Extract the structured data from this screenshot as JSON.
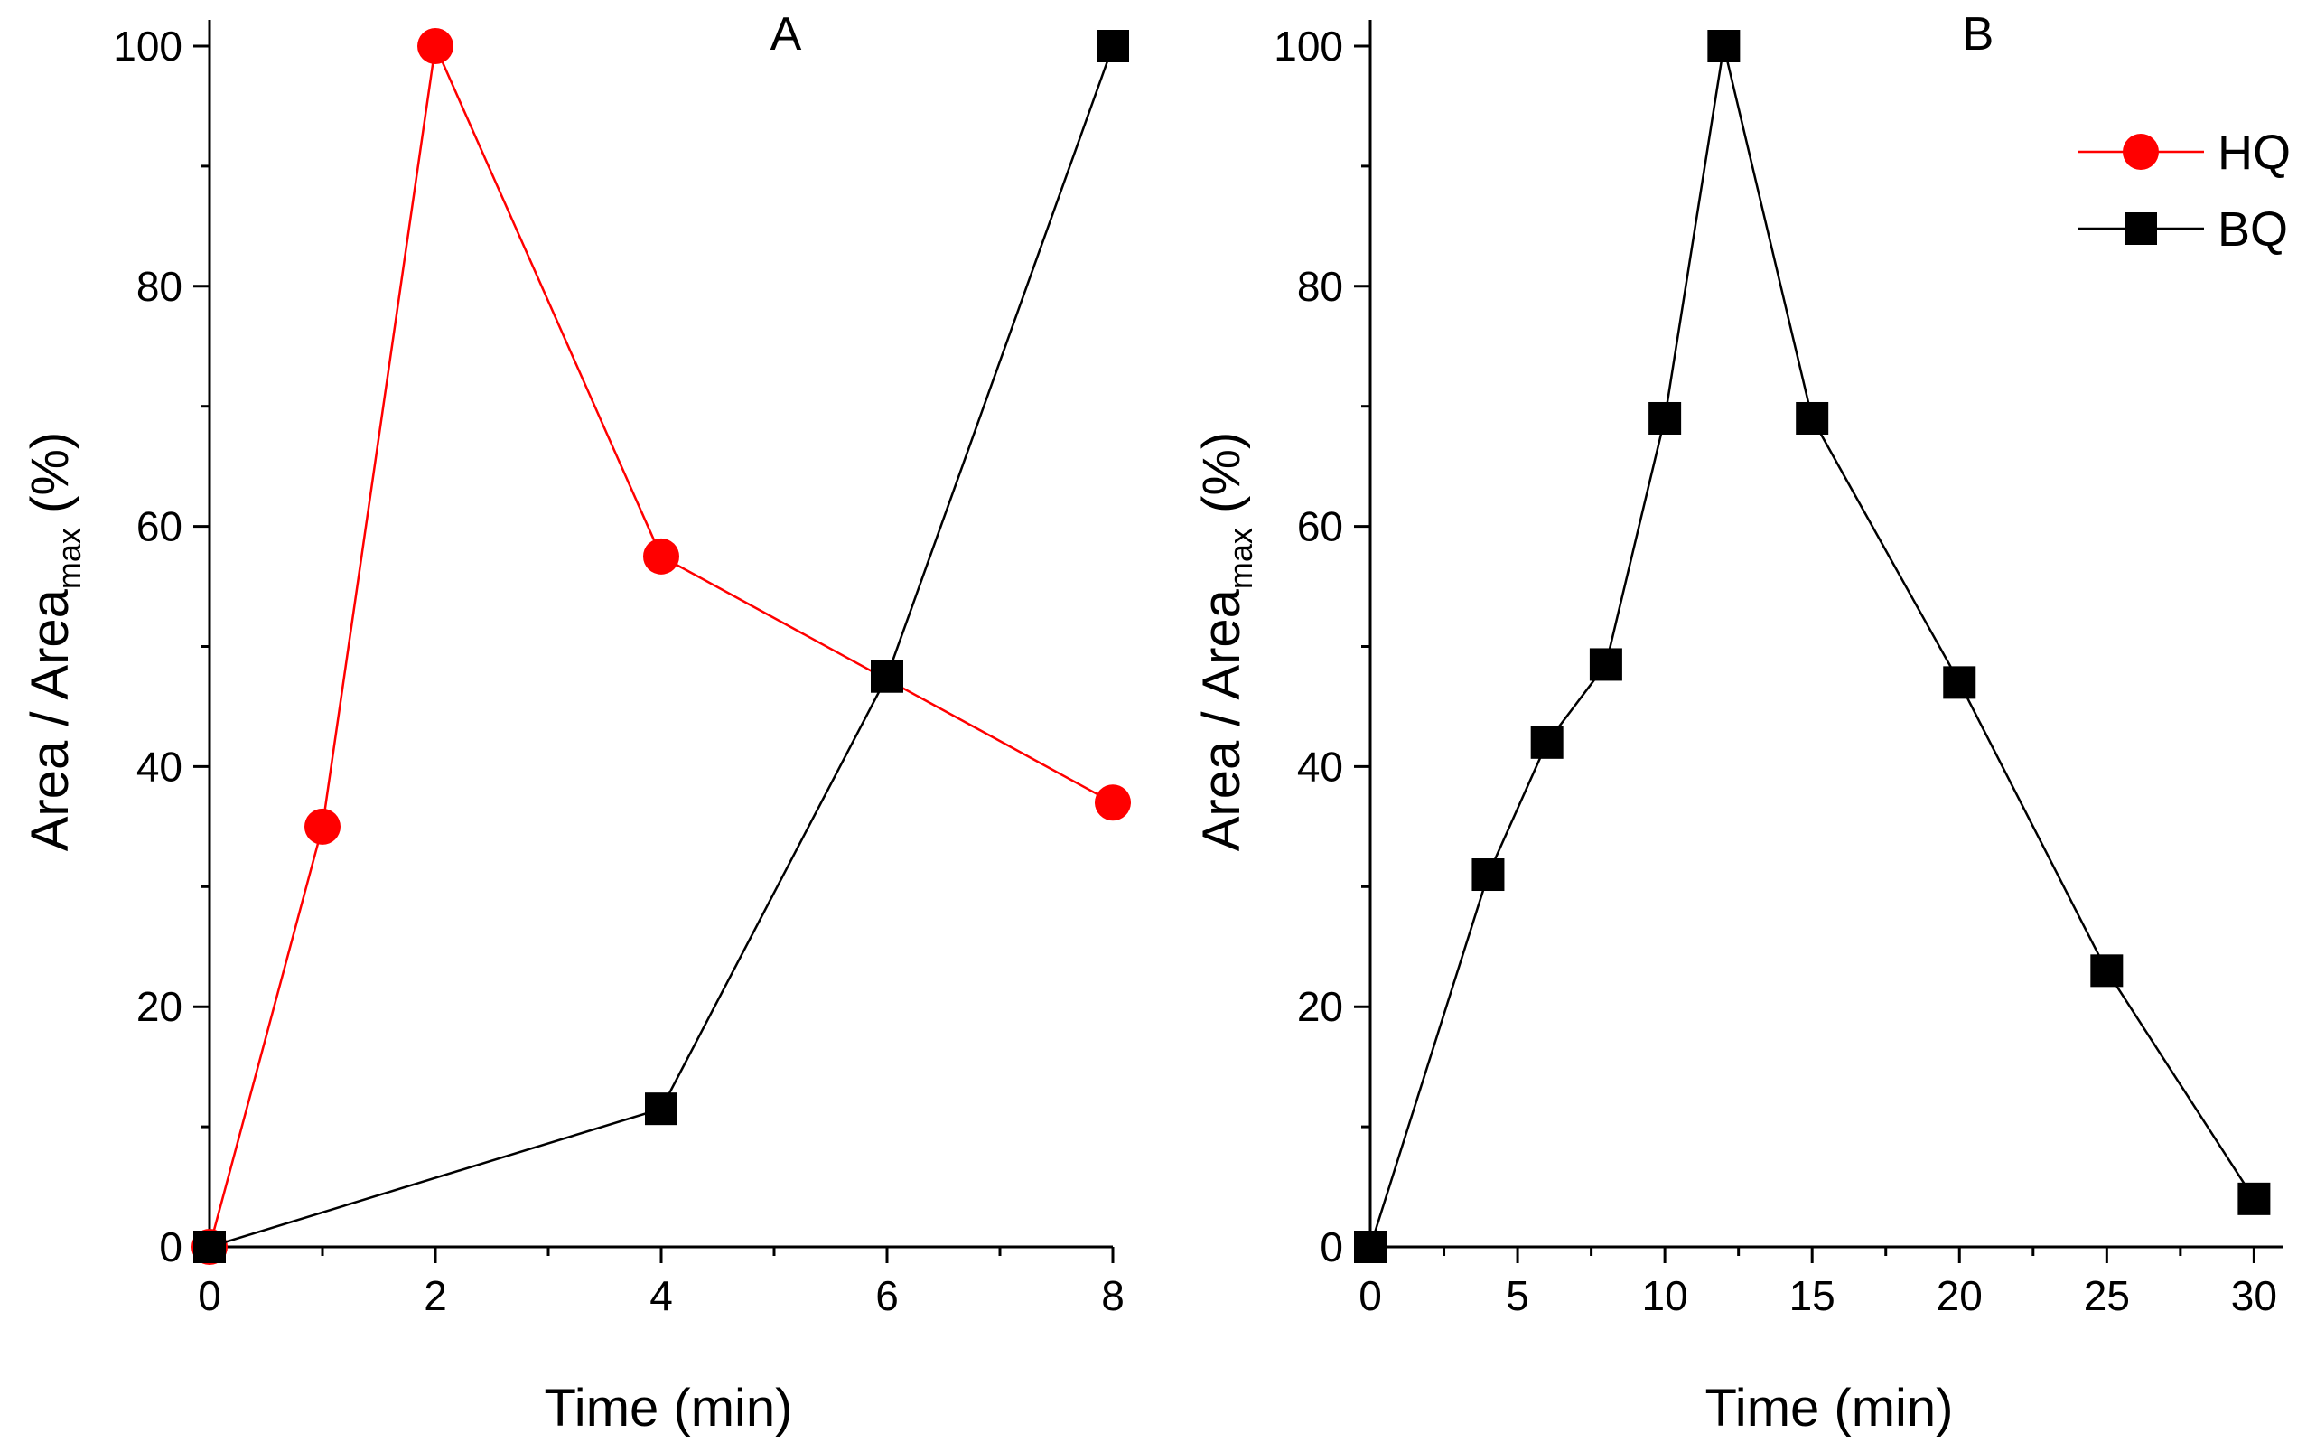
{
  "chart_data": [
    {
      "type": "line",
      "panel_label": "A",
      "title": "",
      "xlabel": "Time (min)",
      "ylabel": "Area / Area",
      "ylabel_subscript": "max",
      "ylabel_suffix": " (%)",
      "xlim": [
        0,
        8
      ],
      "ylim": [
        0,
        100
      ],
      "xticks": [
        0,
        2,
        4,
        6,
        8
      ],
      "yticks": [
        0,
        20,
        40,
        60,
        80,
        100
      ],
      "grid": false,
      "series": [
        {
          "name": "HQ",
          "color": "#ff0000",
          "marker": "circle",
          "x": [
            0,
            1,
            2,
            4,
            8
          ],
          "y": [
            0,
            35,
            100,
            57.5,
            37
          ]
        },
        {
          "name": "BQ",
          "color": "#000000",
          "marker": "square",
          "x": [
            0,
            4,
            6,
            8
          ],
          "y": [
            0,
            11.5,
            47.5,
            100
          ]
        }
      ]
    },
    {
      "type": "line",
      "panel_label": "B",
      "title": "",
      "xlabel": "Time (min)",
      "ylabel": "Area / Area",
      "ylabel_subscript": "max",
      "ylabel_suffix": " (%)",
      "xlim": [
        0,
        31
      ],
      "ylim": [
        0,
        100
      ],
      "xticks": [
        0,
        5,
        10,
        15,
        20,
        25,
        30
      ],
      "yticks": [
        0,
        20,
        40,
        60,
        80,
        100
      ],
      "grid": false,
      "series": [
        {
          "name": "BQ",
          "color": "#000000",
          "marker": "square",
          "x": [
            0,
            4,
            6,
            8,
            10,
            12,
            15,
            20,
            25,
            30
          ],
          "y": [
            0,
            31,
            42,
            48.5,
            69,
            100,
            69,
            47,
            23,
            4
          ]
        }
      ],
      "legend": {
        "placement": "top-right",
        "entries": [
          {
            "label": "HQ",
            "color": "#ff0000",
            "marker": "circle"
          },
          {
            "label": "BQ",
            "color": "#000000",
            "marker": "square"
          }
        ]
      }
    }
  ]
}
